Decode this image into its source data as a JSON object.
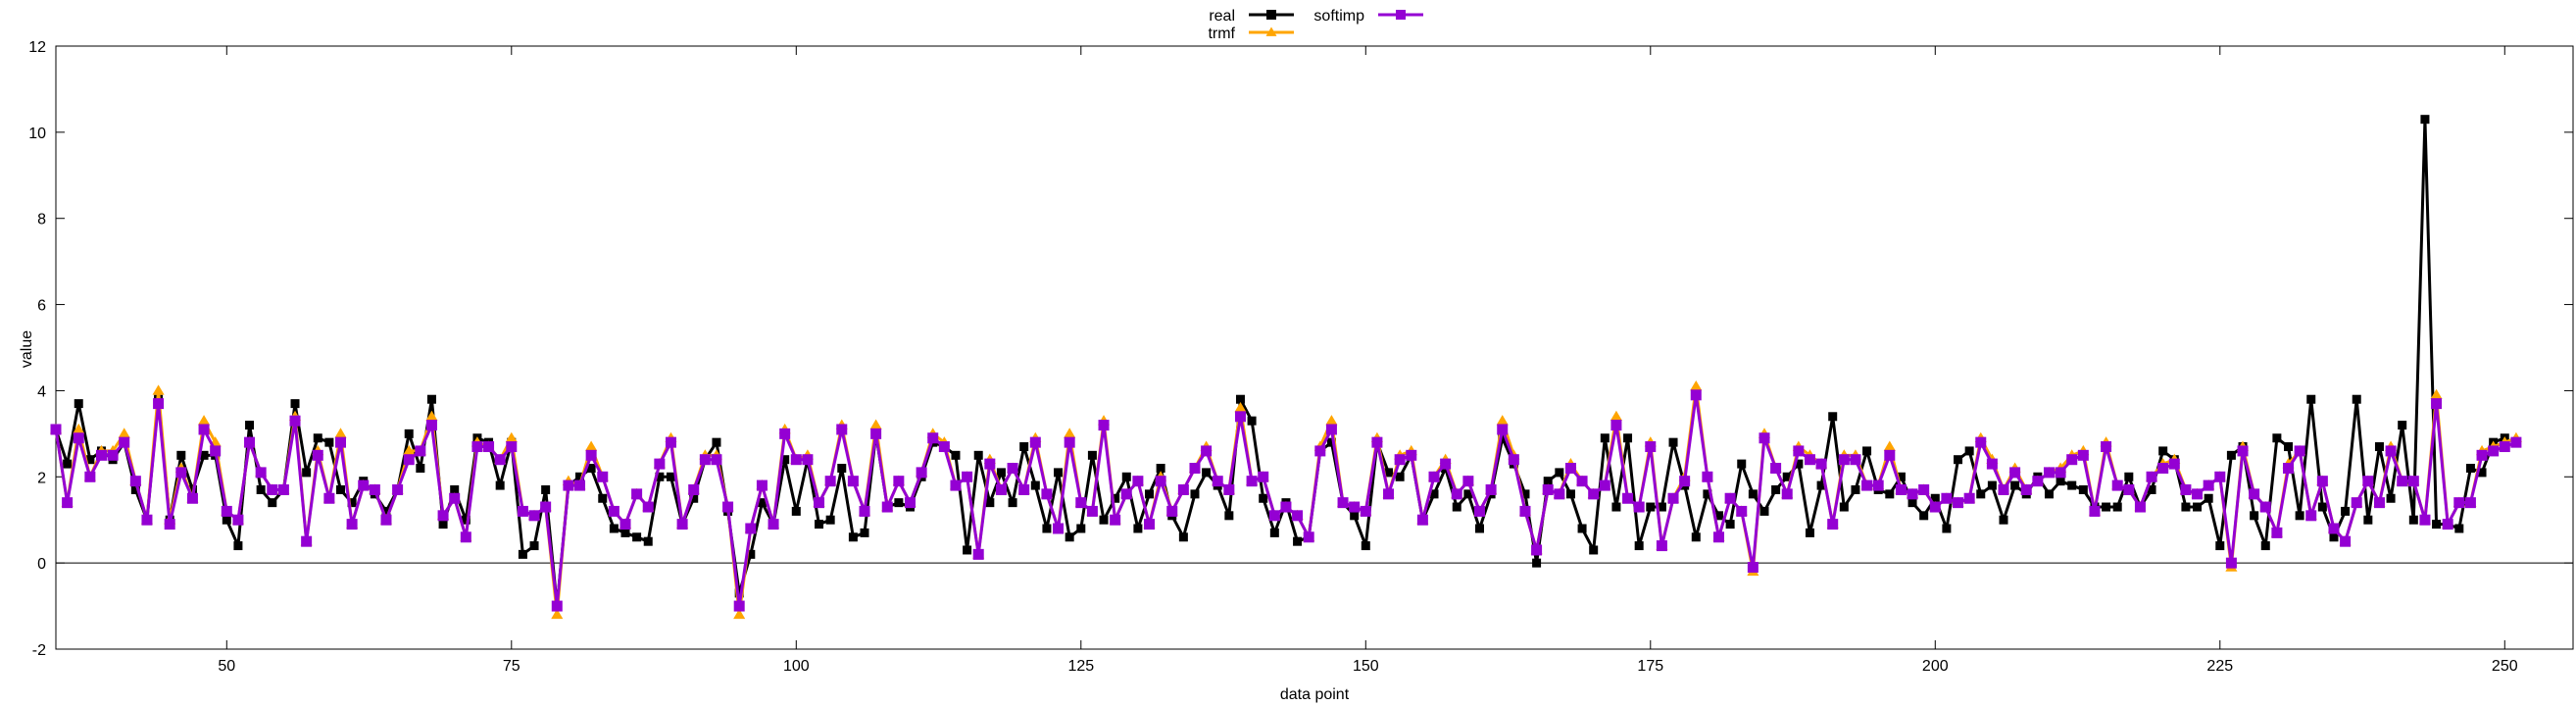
{
  "chart_data": {
    "type": "line",
    "xlabel": "data point",
    "ylabel": "value",
    "xlim": [
      35,
      256
    ],
    "ylim": [
      -2,
      12
    ],
    "x_ticks": [
      50,
      75,
      100,
      125,
      150,
      175,
      200,
      225,
      250
    ],
    "y_ticks": [
      -2,
      0,
      2,
      4,
      6,
      8,
      10,
      12
    ],
    "x_start": 35,
    "legend": {
      "placement": "top-center"
    },
    "grid": false,
    "zero_line": true,
    "series": [
      {
        "name": "real",
        "color": "#000000",
        "marker": "square",
        "values": [
          3.1,
          2.3,
          3.7,
          2.4,
          2.6,
          2.4,
          2.8,
          1.7,
          1.0,
          3.8,
          1.0,
          2.5,
          1.7,
          2.5,
          2.5,
          1.0,
          0.4,
          3.2,
          1.7,
          1.4,
          1.7,
          3.7,
          2.1,
          2.9,
          2.8,
          1.7,
          1.4,
          1.9,
          1.6,
          1.2,
          1.7,
          3.0,
          2.2,
          3.8,
          0.9,
          1.7,
          1.0,
          2.9,
          2.8,
          1.8,
          2.8,
          0.2,
          0.4,
          1.7,
          -1.0,
          1.8,
          2.0,
          2.2,
          1.5,
          0.8,
          0.7,
          0.6,
          0.5,
          2.0,
          2.0,
          0.9,
          1.5,
          2.4,
          2.8,
          1.2,
          -0.7,
          0.2,
          1.4,
          0.9,
          2.4,
          1.2,
          2.4,
          0.9,
          1.0,
          2.2,
          0.6,
          0.7,
          3.0,
          1.3,
          1.4,
          1.3,
          2.0,
          2.8,
          2.7,
          2.5,
          0.3,
          2.5,
          1.4,
          2.1,
          1.4,
          2.7,
          1.8,
          0.8,
          2.1,
          0.6,
          0.8,
          2.5,
          1.0,
          1.5,
          2.0,
          0.8,
          1.6,
          2.2,
          1.1,
          0.6,
          1.6,
          2.1,
          1.8,
          1.1,
          3.8,
          3.3,
          1.5,
          0.7,
          1.4,
          0.5,
          0.6,
          2.6,
          2.8,
          1.4,
          1.1,
          0.4,
          2.8,
          2.1,
          2.0,
          2.5,
          1.0,
          1.6,
          2.2,
          1.3,
          1.6,
          0.8,
          1.6,
          2.9,
          2.3,
          1.6,
          0.0,
          1.9,
          2.1,
          1.6,
          0.8,
          0.3,
          2.9,
          1.3,
          2.9,
          0.4,
          1.3,
          1.3,
          2.8,
          1.8,
          0.6,
          1.6,
          1.1,
          0.9,
          2.3,
          1.6,
          1.2,
          1.7,
          2.0,
          2.3,
          0.7,
          1.8,
          3.4,
          1.3,
          1.7,
          2.6,
          1.7,
          1.6,
          2.0,
          1.4,
          1.1,
          1.5,
          0.8,
          2.4,
          2.6,
          1.6,
          1.8,
          1.0,
          1.8,
          1.6,
          2.0,
          1.6,
          1.9,
          1.8,
          1.7,
          1.3,
          1.3,
          1.3,
          2.0,
          1.3,
          1.7,
          2.6,
          2.4,
          1.3,
          1.3,
          1.5,
          0.4,
          2.5,
          2.7,
          1.1,
          0.4,
          2.9,
          2.7,
          1.1,
          3.8,
          1.3,
          0.6,
          1.2,
          3.8,
          1.0,
          2.7,
          1.5,
          3.2,
          1.0,
          10.3,
          0.9,
          0.9,
          0.8,
          2.2,
          2.1,
          2.8,
          2.9
        ]
      },
      {
        "name": "softimp",
        "color": "#9400d3",
        "marker": "square",
        "values": [
          3.1,
          1.4,
          2.9,
          2.0,
          2.5,
          2.5,
          2.8,
          1.9,
          1.0,
          3.7,
          0.9,
          2.1,
          1.5,
          3.1,
          2.6,
          1.2,
          1.0,
          2.8,
          2.1,
          1.7,
          1.7,
          3.3,
          0.5,
          2.5,
          1.5,
          2.8,
          0.9,
          1.8,
          1.7,
          1.0,
          1.7,
          2.4,
          2.6,
          3.2,
          1.1,
          1.5,
          0.6,
          2.7,
          2.7,
          2.4,
          2.7,
          1.2,
          1.1,
          1.3,
          -1.0,
          1.8,
          1.8,
          2.5,
          2.0,
          1.2,
          0.9,
          1.6,
          1.3,
          2.3,
          2.8,
          0.9,
          1.7,
          2.4,
          2.4,
          1.3,
          -1.0,
          0.8,
          1.8,
          0.9,
          3.0,
          2.4,
          2.4,
          1.4,
          1.9,
          3.1,
          1.9,
          1.2,
          3.0,
          1.3,
          1.9,
          1.4,
          2.1,
          2.9,
          2.7,
          1.8,
          2.0,
          0.2,
          2.3,
          1.7,
          2.2,
          1.7,
          2.8,
          1.6,
          0.8,
          2.8,
          1.4,
          1.2,
          3.2,
          1.0,
          1.6,
          1.9,
          0.9,
          1.9,
          1.2,
          1.7,
          2.2,
          2.6,
          1.9,
          1.7,
          3.4,
          1.9,
          2.0,
          1.1,
          1.3,
          1.1,
          0.6,
          2.6,
          3.1,
          1.4,
          1.3,
          1.2,
          2.8,
          1.6,
          2.4,
          2.5,
          1.0,
          2.0,
          2.3,
          1.6,
          1.9,
          1.2,
          1.7,
          3.1,
          2.4,
          1.2,
          0.3,
          1.7,
          1.6,
          2.2,
          1.9,
          1.6,
          1.8,
          3.2,
          1.5,
          1.3,
          2.7,
          0.4,
          1.5,
          1.9,
          3.9,
          2.0,
          0.6,
          1.5,
          1.2,
          -0.1,
          2.9,
          2.2,
          1.6,
          2.6,
          2.4,
          2.3,
          0.9,
          2.4,
          2.4,
          1.8,
          1.8,
          2.5,
          1.7,
          1.6,
          1.7,
          1.3,
          1.5,
          1.4,
          1.5,
          2.8,
          2.3,
          1.7,
          2.1,
          1.7,
          1.9,
          2.1,
          2.1,
          2.4,
          2.5,
          1.2,
          2.7,
          1.8,
          1.7,
          1.3,
          2.0,
          2.2,
          2.3,
          1.7,
          1.6,
          1.8,
          2.0,
          0.0,
          2.6,
          1.6,
          1.3,
          0.7,
          2.2,
          2.6,
          1.1,
          1.9,
          0.8,
          0.5,
          1.4,
          1.9,
          1.4,
          2.6,
          1.9,
          1.9,
          1.0,
          3.7,
          0.9,
          1.4,
          1.4,
          2.5,
          2.6,
          2.7,
          2.8
        ]
      },
      {
        "name": "trmf",
        "color": "#ffa500",
        "marker": "triangle",
        "values": [
          3.1,
          1.4,
          3.1,
          2.0,
          2.6,
          2.6,
          3.0,
          1.9,
          1.0,
          4.0,
          1.0,
          2.2,
          1.5,
          3.3,
          2.8,
          1.2,
          1.0,
          2.8,
          2.1,
          1.7,
          1.7,
          3.4,
          0.5,
          2.6,
          1.5,
          3.0,
          0.9,
          1.8,
          1.7,
          1.0,
          1.7,
          2.6,
          2.6,
          3.4,
          1.1,
          1.5,
          0.6,
          2.8,
          2.7,
          2.4,
          2.9,
          1.2,
          1.1,
          1.3,
          -1.2,
          1.9,
          1.8,
          2.7,
          2.0,
          1.2,
          0.9,
          1.6,
          1.3,
          2.3,
          2.9,
          0.9,
          1.7,
          2.5,
          2.5,
          1.3,
          -1.2,
          0.8,
          1.8,
          0.9,
          3.1,
          2.4,
          2.5,
          1.4,
          1.9,
          3.2,
          1.9,
          1.2,
          3.2,
          1.3,
          1.9,
          1.4,
          2.1,
          3.0,
          2.8,
          1.8,
          2.0,
          0.2,
          2.4,
          1.7,
          2.2,
          1.7,
          2.9,
          1.6,
          0.8,
          3.0,
          1.4,
          1.2,
          3.3,
          1.0,
          1.6,
          1.9,
          0.9,
          2.0,
          1.2,
          1.7,
          2.2,
          2.7,
          1.9,
          1.7,
          3.6,
          1.9,
          2.0,
          1.1,
          1.3,
          1.1,
          0.6,
          2.7,
          3.3,
          1.4,
          1.3,
          1.2,
          2.9,
          1.6,
          2.5,
          2.6,
          1.0,
          2.0,
          2.4,
          1.6,
          1.9,
          1.2,
          1.7,
          3.3,
          2.5,
          1.2,
          0.3,
          1.7,
          1.6,
          2.3,
          1.9,
          1.6,
          1.8,
          3.4,
          1.5,
          1.3,
          2.8,
          0.4,
          1.5,
          2.0,
          4.1,
          2.0,
          0.6,
          1.5,
          1.2,
          -0.2,
          3.0,
          2.2,
          1.6,
          2.7,
          2.5,
          2.3,
          0.9,
          2.5,
          2.5,
          1.8,
          1.8,
          2.7,
          1.7,
          1.6,
          1.7,
          1.3,
          1.5,
          1.4,
          1.5,
          2.9,
          2.4,
          1.7,
          2.2,
          1.7,
          1.9,
          2.1,
          2.2,
          2.5,
          2.6,
          1.2,
          2.8,
          1.8,
          1.7,
          1.3,
          2.0,
          2.3,
          2.4,
          1.7,
          1.6,
          1.8,
          2.0,
          -0.1,
          2.7,
          1.6,
          1.3,
          0.7,
          2.3,
          2.6,
          1.1,
          1.9,
          0.8,
          0.5,
          1.4,
          1.9,
          1.4,
          2.7,
          1.9,
          1.9,
          1.0,
          3.9,
          0.9,
          1.4,
          1.4,
          2.6,
          2.7,
          2.8,
          2.9
        ]
      }
    ]
  }
}
